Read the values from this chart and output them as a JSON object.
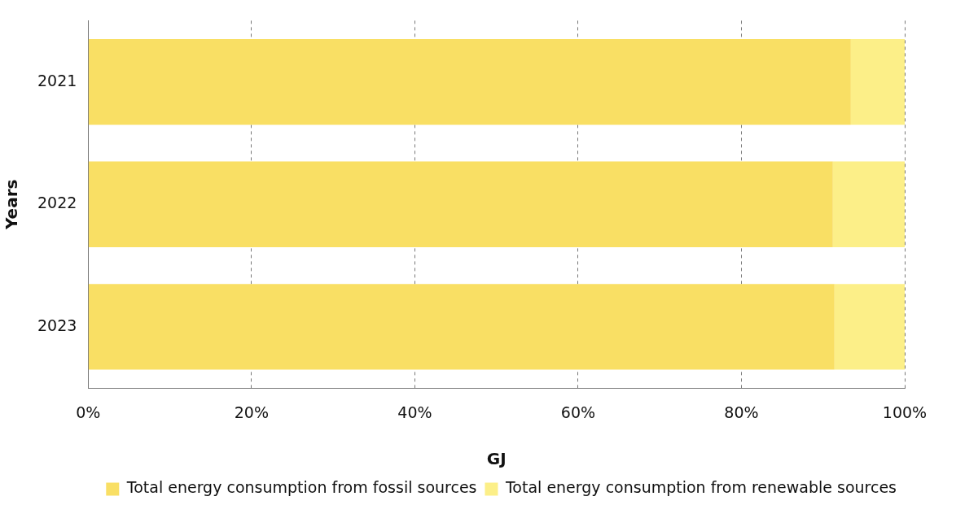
{
  "chart_data": {
    "type": "bar",
    "orientation": "horizontal",
    "stacked": true,
    "xlabel": "GJ",
    "ylabel": "Years",
    "categories": [
      "2021",
      "2022",
      "2023"
    ],
    "series": [
      {
        "name": "Total energy consumption from fossil sources",
        "color": "#f9df64",
        "values": [
          93.4,
          91.2,
          91.4
        ]
      },
      {
        "name": "Total energy consumption from renewable sources",
        "color": "#fcef88",
        "values": [
          6.6,
          8.8,
          8.6
        ]
      }
    ],
    "xlim": [
      0,
      100
    ],
    "xticks": [
      {
        "value": 0,
        "label": "0%"
      },
      {
        "value": 20,
        "label": "20%"
      },
      {
        "value": 40,
        "label": "40%"
      },
      {
        "value": 60,
        "label": "60%"
      },
      {
        "value": 80,
        "label": "80%"
      },
      {
        "value": 100,
        "label": "100%"
      }
    ],
    "grid": "x",
    "legend": "bottom"
  }
}
